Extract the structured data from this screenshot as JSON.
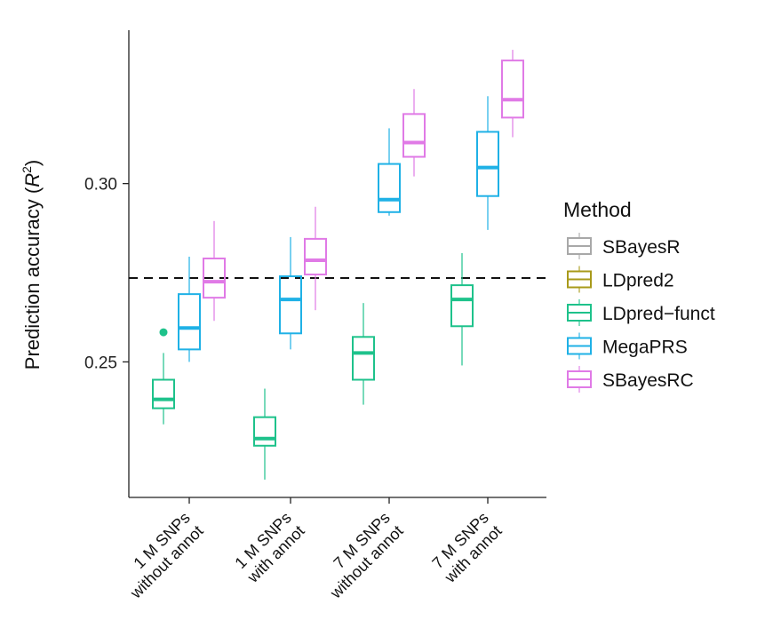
{
  "chart_data": {
    "type": "boxplot",
    "ylabel": "Prediction accuracy (R²)",
    "ylabel_parts": [
      "Prediction accuracy (",
      "R",
      "2",
      ")"
    ],
    "ylim": [
      0.212,
      0.343
    ],
    "yticks": [
      0.25,
      0.3
    ],
    "ytick_labels": [
      "0.25",
      "0.30"
    ],
    "reference_line": 0.2735,
    "categories": [
      {
        "line1": "1 M SNPs",
        "line2": "without annot"
      },
      {
        "line1": "1 M SNPs",
        "line2": "with annot"
      },
      {
        "line1": "7 M SNPs",
        "line2": "without annot"
      },
      {
        "line1": "7 M SNPs",
        "line2": "with annot"
      }
    ],
    "legend": {
      "title": "Method",
      "entries": [
        {
          "name": "SBayesR",
          "color": "#a8a8a8"
        },
        {
          "name": "LDpred2",
          "color": "#a89a1a"
        },
        {
          "name": "LDpred−funct",
          "color": "#1ec28b"
        },
        {
          "name": "MegaPRS",
          "color": "#1fb1e6"
        },
        {
          "name": "SBayesRC",
          "color": "#e07ae6"
        }
      ]
    },
    "boxes": [
      {
        "category": 0,
        "method": "LDpred−funct",
        "whisker_low": 0.2325,
        "q1": 0.237,
        "median": 0.2395,
        "q3": 0.245,
        "whisker_high": 0.2525,
        "outliers": [
          0.2583
        ]
      },
      {
        "category": 0,
        "method": "MegaPRS",
        "whisker_low": 0.25,
        "q1": 0.2535,
        "median": 0.2595,
        "q3": 0.269,
        "whisker_high": 0.2795,
        "outliers": []
      },
      {
        "category": 0,
        "method": "SBayesRC",
        "whisker_low": 0.2615,
        "q1": 0.268,
        "median": 0.2725,
        "q3": 0.279,
        "whisker_high": 0.2895,
        "outliers": []
      },
      {
        "category": 1,
        "method": "LDpred−funct",
        "whisker_low": 0.217,
        "q1": 0.2265,
        "median": 0.2285,
        "q3": 0.2345,
        "whisker_high": 0.2425,
        "outliers": []
      },
      {
        "category": 1,
        "method": "MegaPRS",
        "whisker_low": 0.2535,
        "q1": 0.258,
        "median": 0.2675,
        "q3": 0.274,
        "whisker_high": 0.285,
        "outliers": []
      },
      {
        "category": 1,
        "method": "SBayesRC",
        "whisker_low": 0.2645,
        "q1": 0.2745,
        "median": 0.2785,
        "q3": 0.2845,
        "whisker_high": 0.2935,
        "outliers": []
      },
      {
        "category": 2,
        "method": "LDpred−funct",
        "whisker_low": 0.238,
        "q1": 0.245,
        "median": 0.2525,
        "q3": 0.257,
        "whisker_high": 0.2665,
        "outliers": []
      },
      {
        "category": 2,
        "method": "MegaPRS",
        "whisker_low": 0.291,
        "q1": 0.292,
        "median": 0.2955,
        "q3": 0.3055,
        "whisker_high": 0.3155,
        "outliers": []
      },
      {
        "category": 2,
        "method": "SBayesRC",
        "whisker_low": 0.302,
        "q1": 0.3075,
        "median": 0.3115,
        "q3": 0.3195,
        "whisker_high": 0.3265,
        "outliers": []
      },
      {
        "category": 3,
        "method": "LDpred−funct",
        "whisker_low": 0.249,
        "q1": 0.26,
        "median": 0.2675,
        "q3": 0.2715,
        "whisker_high": 0.2805,
        "outliers": []
      },
      {
        "category": 3,
        "method": "MegaPRS",
        "whisker_low": 0.287,
        "q1": 0.2965,
        "median": 0.3045,
        "q3": 0.3145,
        "whisker_high": 0.3245,
        "outliers": []
      },
      {
        "category": 3,
        "method": "SBayesRC",
        "whisker_low": 0.313,
        "q1": 0.3185,
        "median": 0.3235,
        "q3": 0.3345,
        "whisker_high": 0.3375,
        "outliers": []
      }
    ]
  }
}
